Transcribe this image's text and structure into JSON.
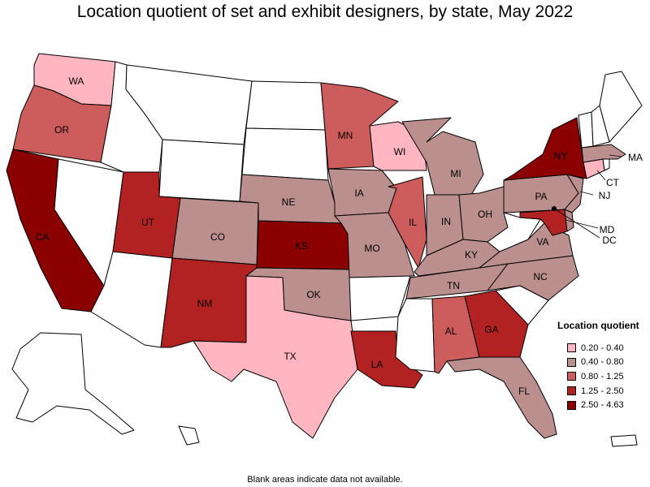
{
  "title": "Location quotient of set and exhibit designers, by state, May 2022",
  "footnote": "Blank areas indicate data not available.",
  "legend": {
    "title": "Location quotient",
    "classes": [
      {
        "label": "0.20 - 0.40",
        "color": "#ffb6c1"
      },
      {
        "label": "0.40 - 0.80",
        "color": "#bc8f8f"
      },
      {
        "label": "0.80 - 1.25",
        "color": "#cd5c5c"
      },
      {
        "label": "1.25 - 2.50",
        "color": "#b22222"
      },
      {
        "label": "2.50 - 4.63",
        "color": "#8b0000"
      }
    ]
  },
  "states": {
    "WA": {
      "label": "WA",
      "class": 0
    },
    "OR": {
      "label": "OR",
      "class": 2
    },
    "CA": {
      "label": "CA",
      "class": 4
    },
    "UT": {
      "label": "UT",
      "class": 3
    },
    "CO": {
      "label": "CO",
      "class": 1
    },
    "NM": {
      "label": "NM",
      "class": 3
    },
    "TX": {
      "label": "TX",
      "class": 0
    },
    "NE": {
      "label": "NE",
      "class": 1
    },
    "KS": {
      "label": "KS",
      "class": 4
    },
    "OK": {
      "label": "OK",
      "class": 1
    },
    "MN": {
      "label": "MN",
      "class": 2
    },
    "IA": {
      "label": "IA",
      "class": 1
    },
    "MO": {
      "label": "MO",
      "class": 1
    },
    "LA": {
      "label": "LA",
      "class": 3
    },
    "WI": {
      "label": "WI",
      "class": 0
    },
    "IL": {
      "label": "IL",
      "class": 2
    },
    "MI": {
      "label": "MI",
      "class": 1
    },
    "IN": {
      "label": "IN",
      "class": 1
    },
    "OH": {
      "label": "OH",
      "class": 1
    },
    "KY": {
      "label": "KY",
      "class": 1
    },
    "TN": {
      "label": "TN",
      "class": 1
    },
    "AL": {
      "label": "AL",
      "class": 2
    },
    "GA": {
      "label": "GA",
      "class": 3
    },
    "FL": {
      "label": "FL",
      "class": 1
    },
    "NC": {
      "label": "NC",
      "class": 1
    },
    "VA": {
      "label": "VA",
      "class": 1
    },
    "PA": {
      "label": "PA",
      "class": 1
    },
    "NY": {
      "label": "NY",
      "class": 4
    },
    "MA": {
      "label": "MA",
      "class": 1
    },
    "CT": {
      "label": "CT",
      "class": 0
    },
    "NJ": {
      "label": "NJ",
      "class": 1
    },
    "MD": {
      "label": "MD",
      "class": 3
    },
    "DC": {
      "label": "DC",
      "class": 4
    },
    "DE": {
      "class": 1
    },
    "ID": {
      "class": null
    },
    "MT": {
      "class": null
    },
    "WY": {
      "class": null
    },
    "NV": {
      "class": null
    },
    "AZ": {
      "class": null
    },
    "ND": {
      "class": null
    },
    "SD": {
      "class": null
    },
    "AR": {
      "class": null
    },
    "MS": {
      "class": null
    },
    "SC": {
      "class": null
    },
    "WV": {
      "class": null
    },
    "VT": {
      "class": null
    },
    "NH": {
      "class": null
    },
    "ME": {
      "class": null
    },
    "RI": {
      "class": null
    },
    "AK": {
      "class": null
    },
    "HI": {
      "class": null
    },
    "PR": {
      "class": null
    }
  }
}
